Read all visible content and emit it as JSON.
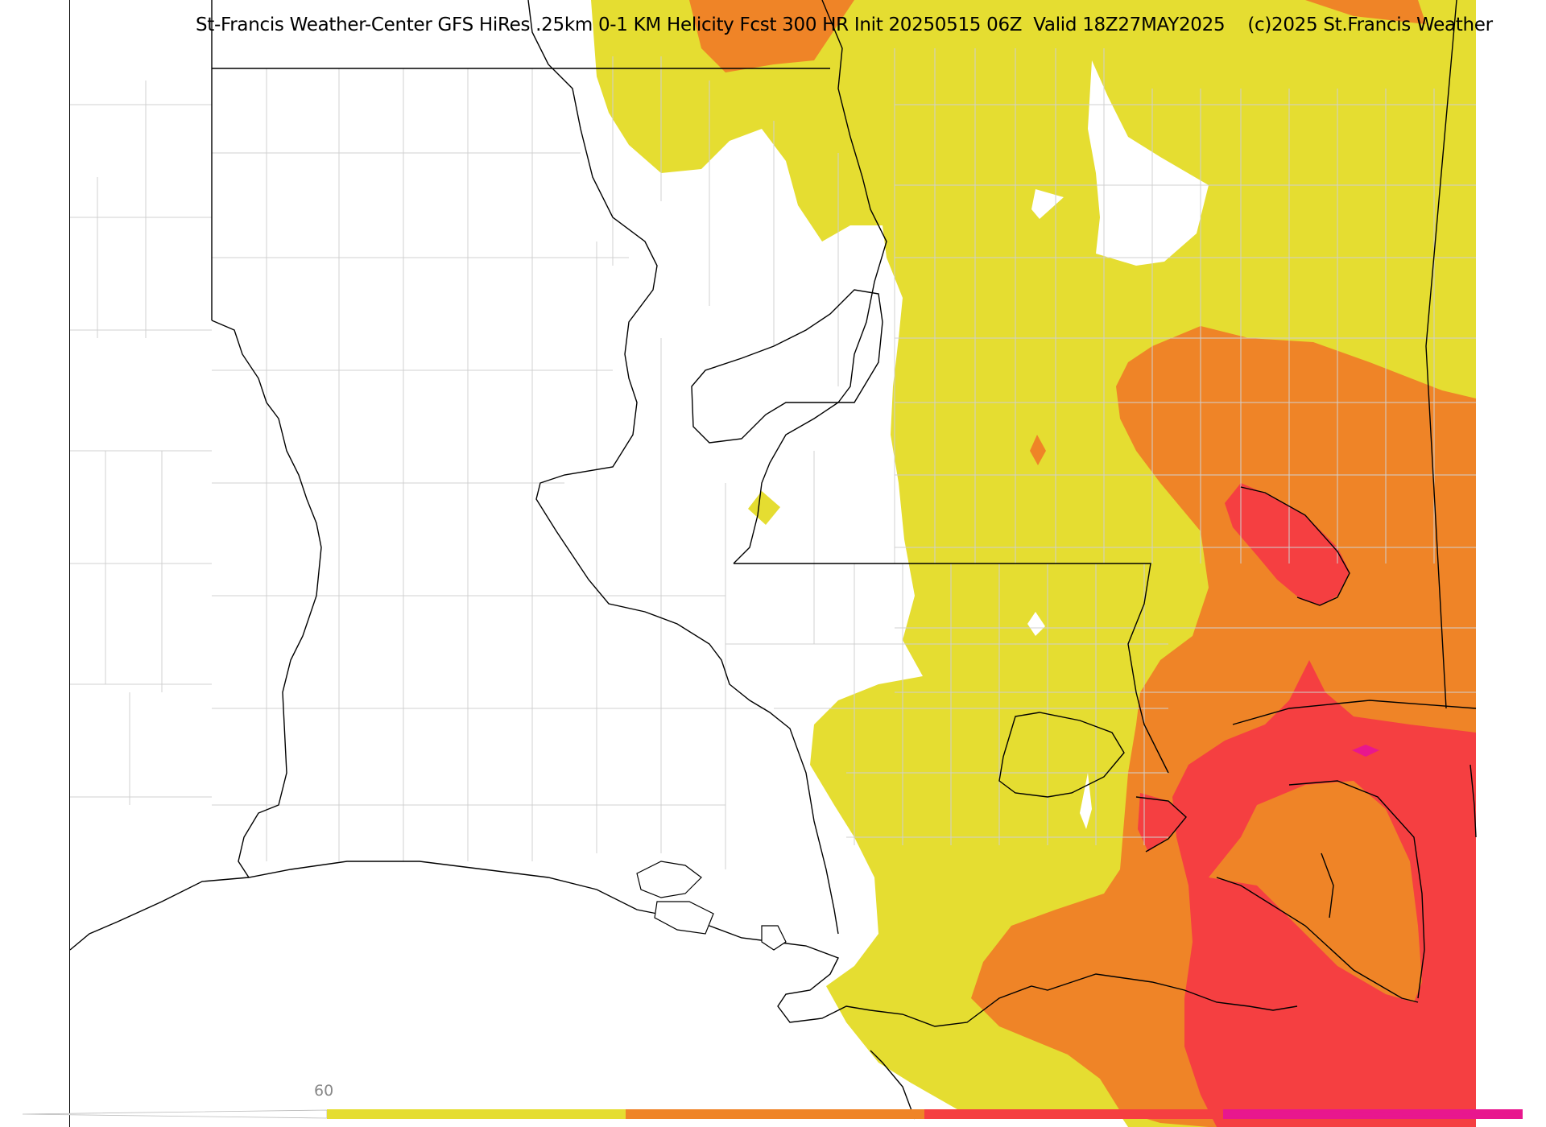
{
  "title": "St-Francis Weather-Center GFS HiRes .25km 0-1 KM Helicity Fcst 300 HR Init 20250515 06Z  Valid 18Z27MAY2025    (c)2025 St.Francis Weather",
  "colorbar": {
    "tick_label": "60",
    "bins": [
      {
        "color": "#e5dd31"
      },
      {
        "color": "#ef8427"
      },
      {
        "color": "#f53f41"
      },
      {
        "color": "#e8178e"
      }
    ]
  },
  "colors": {
    "level_yellow": "#e5dd31",
    "level_orange": "#ef8427",
    "level_red": "#f53f41",
    "level_magenta": "#e8178e",
    "county_lines": "#cfcfcf",
    "state_lines": "#000000"
  }
}
